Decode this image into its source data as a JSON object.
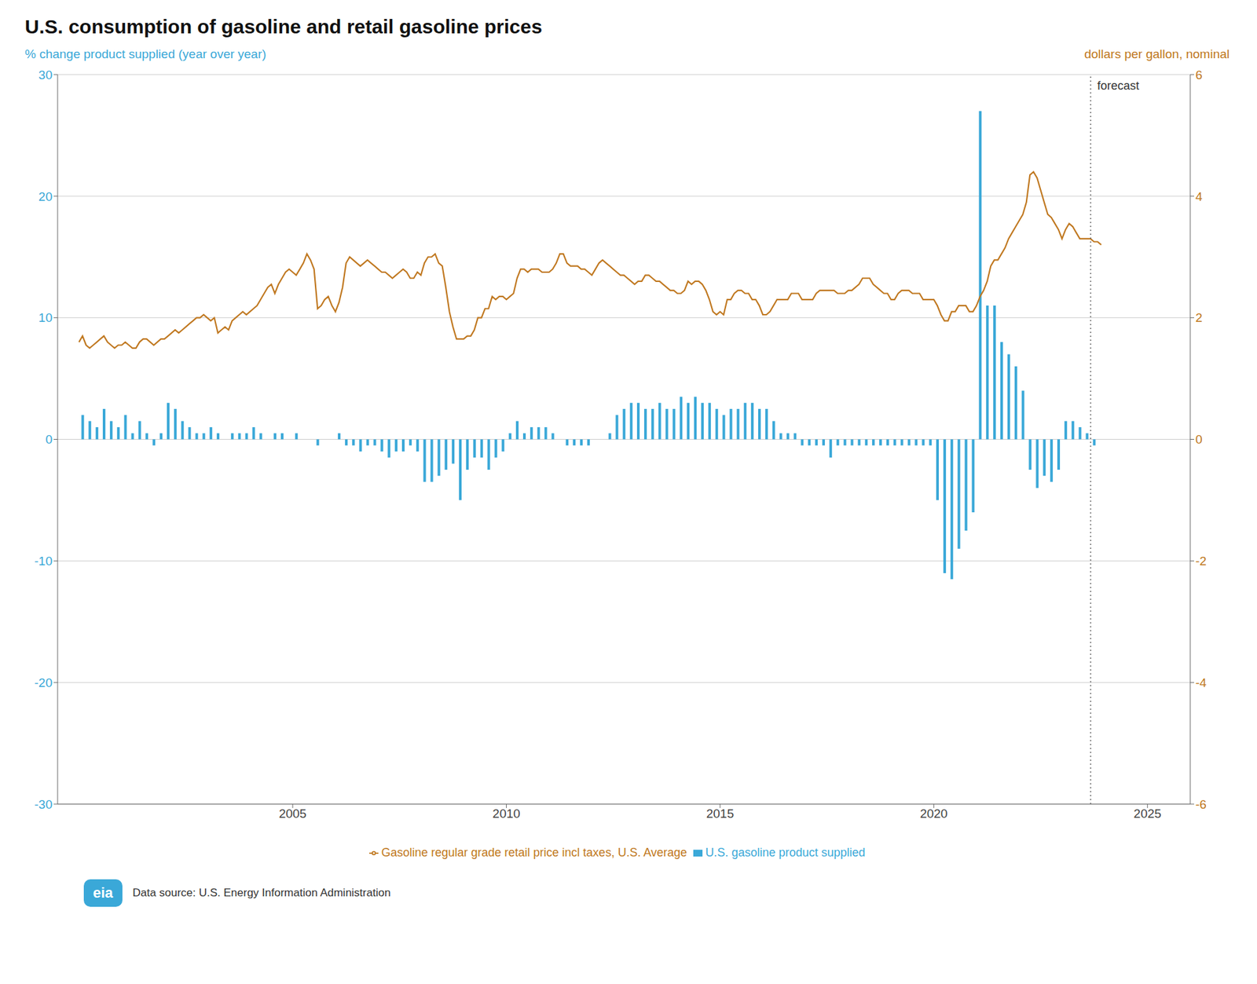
{
  "chart_data": {
    "type": "bar",
    "title": "U.S. consumption of gasoline and retail gasoline prices",
    "ylabel": "% change product supplied (year over year)",
    "y2label": "dollars per gallon, nominal",
    "xlim": [
      1999.5,
      2026.0
    ],
    "xticks": [
      2005,
      2010,
      2015,
      2020,
      2025
    ],
    "ylim": [
      -30,
      30
    ],
    "yticks": [
      -30,
      -20,
      -10,
      0,
      10,
      20,
      30
    ],
    "y2lim": [
      -6,
      6
    ],
    "y2ticks": [
      -6,
      -4,
      -2,
      0,
      2,
      4,
      6
    ],
    "grid": true,
    "legend": "bottom",
    "annotations": [
      {
        "text": "forecast",
        "x": 2023.67
      },
      {
        "text": "eia"
      },
      {
        "text": "Data source: U.S. Energy Information Administration"
      }
    ],
    "series": [
      {
        "name": "U.S. gasoline product supplied",
        "type": "bar",
        "color": "#3AA8D8",
        "x": [
          2000.083,
          2000.25,
          2000.417,
          2000.583,
          2000.75,
          2000.917,
          2001.083,
          2001.25,
          2001.417,
          2001.583,
          2001.75,
          2001.917,
          2002.083,
          2002.25,
          2002.417,
          2002.583,
          2002.75,
          2002.917,
          2003.083,
          2003.25,
          2003.417,
          2003.583,
          2003.75,
          2003.917,
          2004.083,
          2004.25,
          2004.417,
          2004.583,
          2004.75,
          2004.917,
          2005.083,
          2005.25,
          2005.417,
          2005.583,
          2005.75,
          2005.917,
          2006.083,
          2006.25,
          2006.417,
          2006.583,
          2006.75,
          2006.917,
          2007.083,
          2007.25,
          2007.417,
          2007.583,
          2007.75,
          2007.917,
          2008.083,
          2008.25,
          2008.417,
          2008.583,
          2008.75,
          2008.917,
          2009.083,
          2009.25,
          2009.417,
          2009.583,
          2009.75,
          2009.917,
          2010.083,
          2010.25,
          2010.417,
          2010.583,
          2010.75,
          2010.917,
          2011.083,
          2011.25,
          2011.417,
          2011.583,
          2011.75,
          2011.917,
          2012.083,
          2012.25,
          2012.417,
          2012.583,
          2012.75,
          2012.917,
          2013.083,
          2013.25,
          2013.417,
          2013.583,
          2013.75,
          2013.917,
          2014.083,
          2014.25,
          2014.417,
          2014.583,
          2014.75,
          2014.917,
          2015.083,
          2015.25,
          2015.417,
          2015.583,
          2015.75,
          2015.917,
          2016.083,
          2016.25,
          2016.417,
          2016.583,
          2016.75,
          2016.917,
          2017.083,
          2017.25,
          2017.417,
          2017.583,
          2017.75,
          2017.917,
          2018.083,
          2018.25,
          2018.417,
          2018.583,
          2018.75,
          2018.917,
          2019.083,
          2019.25,
          2019.417,
          2019.583,
          2019.75,
          2019.917,
          2020.083,
          2020.25,
          2020.417,
          2020.583,
          2020.75,
          2020.917,
          2021.083,
          2021.25,
          2021.417,
          2021.583,
          2021.75,
          2021.917,
          2022.083,
          2022.25,
          2022.417,
          2022.583,
          2022.75,
          2022.917,
          2023.083,
          2023.25,
          2023.417,
          2023.583,
          2023.75,
          2023.917
        ],
        "values": [
          2.0,
          1.5,
          1.0,
          2.5,
          1.5,
          1.0,
          2.0,
          0.5,
          1.5,
          0.5,
          -0.5,
          0.5,
          3.0,
          2.5,
          1.5,
          1.0,
          0.5,
          0.5,
          1.0,
          0.5,
          0.0,
          0.5,
          0.5,
          0.5,
          1.0,
          0.5,
          0.0,
          0.5,
          0.5,
          0.0,
          0.5,
          0.0,
          0.0,
          -0.5,
          0.0,
          0.0,
          0.5,
          -0.5,
          -0.5,
          -1.0,
          -0.5,
          -0.5,
          -1.0,
          -1.5,
          -1.0,
          -1.0,
          -0.5,
          -1.0,
          -3.5,
          -3.5,
          -3.0,
          -2.5,
          -2.0,
          -5.0,
          -2.5,
          -1.5,
          -1.5,
          -2.5,
          -1.5,
          -1.0,
          0.5,
          1.5,
          0.5,
          1.0,
          1.0,
          1.0,
          0.5,
          0.0,
          -0.5,
          -0.5,
          -0.5,
          -0.5,
          0.0,
          0.0,
          0.5,
          2.0,
          2.5,
          3.0,
          3.0,
          2.5,
          2.5,
          3.0,
          2.5,
          2.5,
          3.5,
          3.0,
          3.5,
          3.0,
          3.0,
          2.5,
          2.0,
          2.5,
          2.5,
          3.0,
          3.0,
          2.5,
          2.5,
          1.5,
          0.5,
          0.5,
          0.5,
          -0.5,
          -0.5,
          -0.5,
          -0.5,
          -1.5,
          -0.5,
          -0.5,
          -0.5,
          -0.5,
          -0.5,
          -0.5,
          -0.5,
          -0.5,
          -0.5,
          -0.5,
          -0.5,
          -0.5,
          -0.5,
          -0.5,
          -5.0,
          -11.0,
          -11.5,
          -9.0,
          -7.5,
          -6.0,
          27.0,
          11.0,
          11.0,
          8.0,
          7.0,
          6.0,
          4.0,
          -2.5,
          -4.0,
          -3.0,
          -3.5,
          -2.5,
          1.5,
          1.5,
          1.0,
          0.5,
          -0.5,
          0.0
        ]
      },
      {
        "name": "Gasoline regular grade retail price incl taxes, U.S. Average",
        "type": "line",
        "axis": "y2",
        "color": "#C07820",
        "x": [
          2000.0,
          2000.083,
          2000.167,
          2000.25,
          2000.333,
          2000.417,
          2000.5,
          2000.583,
          2000.667,
          2000.75,
          2000.833,
          2000.917,
          2001.0,
          2001.083,
          2001.167,
          2001.25,
          2001.333,
          2001.417,
          2001.5,
          2001.583,
          2001.667,
          2001.75,
          2001.833,
          2001.917,
          2002.0,
          2002.083,
          2002.167,
          2002.25,
          2002.333,
          2002.417,
          2002.5,
          2002.583,
          2002.667,
          2002.75,
          2002.833,
          2002.917,
          2003.0,
          2003.083,
          2003.167,
          2003.25,
          2003.333,
          2003.417,
          2003.5,
          2003.583,
          2003.667,
          2003.75,
          2003.833,
          2003.917,
          2004.0,
          2004.083,
          2004.167,
          2004.25,
          2004.333,
          2004.417,
          2004.5,
          2004.583,
          2004.667,
          2004.75,
          2004.833,
          2004.917,
          2005.0,
          2005.083,
          2005.167,
          2005.25,
          2005.333,
          2005.417,
          2005.5,
          2005.583,
          2005.667,
          2005.75,
          2005.833,
          2005.917,
          2006.0,
          2006.083,
          2006.167,
          2006.25,
          2006.333,
          2006.417,
          2006.5,
          2006.583,
          2006.667,
          2006.75,
          2006.833,
          2006.917,
          2007.0,
          2007.083,
          2007.167,
          2007.25,
          2007.333,
          2007.417,
          2007.5,
          2007.583,
          2007.667,
          2007.75,
          2007.833,
          2007.917,
          2008.0,
          2008.083,
          2008.167,
          2008.25,
          2008.333,
          2008.417,
          2008.5,
          2008.583,
          2008.667,
          2008.75,
          2008.833,
          2008.917,
          2009.0,
          2009.083,
          2009.167,
          2009.25,
          2009.333,
          2009.417,
          2009.5,
          2009.583,
          2009.667,
          2009.75,
          2009.833,
          2009.917,
          2010.0,
          2010.083,
          2010.167,
          2010.25,
          2010.333,
          2010.417,
          2010.5,
          2010.583,
          2010.667,
          2010.75,
          2010.833,
          2010.917,
          2011.0,
          2011.083,
          2011.167,
          2011.25,
          2011.333,
          2011.417,
          2011.5,
          2011.583,
          2011.667,
          2011.75,
          2011.833,
          2011.917,
          2012.0,
          2012.083,
          2012.167,
          2012.25,
          2012.333,
          2012.417,
          2012.5,
          2012.583,
          2012.667,
          2012.75,
          2012.833,
          2012.917,
          2013.0,
          2013.083,
          2013.167,
          2013.25,
          2013.333,
          2013.417,
          2013.5,
          2013.583,
          2013.667,
          2013.75,
          2013.833,
          2013.917,
          2014.0,
          2014.083,
          2014.167,
          2014.25,
          2014.333,
          2014.417,
          2014.5,
          2014.583,
          2014.667,
          2014.75,
          2014.833,
          2014.917,
          2015.0,
          2015.083,
          2015.167,
          2015.25,
          2015.333,
          2015.417,
          2015.5,
          2015.583,
          2015.667,
          2015.75,
          2015.833,
          2015.917,
          2016.0,
          2016.083,
          2016.167,
          2016.25,
          2016.333,
          2016.417,
          2016.5,
          2016.583,
          2016.667,
          2016.75,
          2016.833,
          2016.917,
          2017.0,
          2017.083,
          2017.167,
          2017.25,
          2017.333,
          2017.417,
          2017.5,
          2017.583,
          2017.667,
          2017.75,
          2017.833,
          2017.917,
          2018.0,
          2018.083,
          2018.167,
          2018.25,
          2018.333,
          2018.417,
          2018.5,
          2018.583,
          2018.667,
          2018.75,
          2018.833,
          2018.917,
          2019.0,
          2019.083,
          2019.167,
          2019.25,
          2019.333,
          2019.417,
          2019.5,
          2019.583,
          2019.667,
          2019.75,
          2019.833,
          2019.917,
          2020.0,
          2020.083,
          2020.167,
          2020.25,
          2020.333,
          2020.417,
          2020.5,
          2020.583,
          2020.667,
          2020.75,
          2020.833,
          2020.917,
          2021.0,
          2021.083,
          2021.167,
          2021.25,
          2021.333,
          2021.417,
          2021.5,
          2021.583,
          2021.667,
          2021.75,
          2021.833,
          2021.917,
          2022.0,
          2022.083,
          2022.167,
          2022.25,
          2022.333,
          2022.417,
          2022.5,
          2022.583,
          2022.667,
          2022.75,
          2022.833,
          2022.917,
          2023.0,
          2023.083,
          2023.167,
          2023.25,
          2023.333,
          2023.417,
          2023.5,
          2023.583,
          2023.667,
          2023.75,
          2023.833,
          2023.917
        ],
        "values": [
          1.6,
          1.7,
          1.55,
          1.5,
          1.55,
          1.6,
          1.65,
          1.7,
          1.6,
          1.55,
          1.5,
          1.55,
          1.55,
          1.6,
          1.55,
          1.5,
          1.5,
          1.6,
          1.65,
          1.65,
          1.6,
          1.55,
          1.6,
          1.65,
          1.65,
          1.7,
          1.75,
          1.8,
          1.75,
          1.8,
          1.85,
          1.9,
          1.95,
          2.0,
          2.0,
          2.05,
          2.0,
          1.95,
          2.0,
          1.75,
          1.8,
          1.85,
          1.8,
          1.95,
          2.0,
          2.05,
          2.1,
          2.05,
          2.1,
          2.15,
          2.2,
          2.3,
          2.4,
          2.5,
          2.55,
          2.4,
          2.55,
          2.65,
          2.75,
          2.8,
          2.75,
          2.7,
          2.8,
          2.9,
          3.05,
          2.95,
          2.8,
          2.15,
          2.2,
          2.3,
          2.35,
          2.2,
          2.1,
          2.25,
          2.5,
          2.9,
          3.0,
          2.95,
          2.9,
          2.85,
          2.9,
          2.95,
          2.9,
          2.85,
          2.8,
          2.75,
          2.75,
          2.7,
          2.65,
          2.7,
          2.75,
          2.8,
          2.75,
          2.65,
          2.65,
          2.75,
          2.7,
          2.9,
          3.0,
          3.0,
          3.05,
          2.9,
          2.85,
          2.5,
          2.1,
          1.85,
          1.65,
          1.65,
          1.65,
          1.7,
          1.7,
          1.8,
          2.0,
          2.0,
          2.15,
          2.15,
          2.35,
          2.3,
          2.35,
          2.35,
          2.3,
          2.35,
          2.4,
          2.65,
          2.8,
          2.8,
          2.75,
          2.8,
          2.8,
          2.8,
          2.75,
          2.75,
          2.75,
          2.8,
          2.9,
          3.05,
          3.05,
          2.9,
          2.85,
          2.85,
          2.85,
          2.8,
          2.8,
          2.75,
          2.7,
          2.8,
          2.9,
          2.95,
          2.9,
          2.85,
          2.8,
          2.75,
          2.7,
          2.7,
          2.65,
          2.6,
          2.55,
          2.6,
          2.6,
          2.7,
          2.7,
          2.65,
          2.6,
          2.6,
          2.55,
          2.5,
          2.45,
          2.45,
          2.4,
          2.4,
          2.45,
          2.6,
          2.55,
          2.6,
          2.6,
          2.55,
          2.45,
          2.3,
          2.1,
          2.05,
          2.1,
          2.05,
          2.3,
          2.3,
          2.4,
          2.45,
          2.45,
          2.4,
          2.4,
          2.3,
          2.3,
          2.2,
          2.05,
          2.05,
          2.1,
          2.2,
          2.3,
          2.3,
          2.3,
          2.3,
          2.4,
          2.4,
          2.4,
          2.3,
          2.3,
          2.3,
          2.3,
          2.4,
          2.45,
          2.45,
          2.45,
          2.45,
          2.45,
          2.4,
          2.4,
          2.4,
          2.45,
          2.45,
          2.5,
          2.55,
          2.65,
          2.65,
          2.65,
          2.55,
          2.5,
          2.45,
          2.4,
          2.4,
          2.3,
          2.3,
          2.4,
          2.45,
          2.45,
          2.45,
          2.4,
          2.4,
          2.4,
          2.3,
          2.3,
          2.3,
          2.3,
          2.2,
          2.05,
          1.95,
          1.95,
          2.1,
          2.1,
          2.2,
          2.2,
          2.2,
          2.1,
          2.1,
          2.2,
          2.35,
          2.45,
          2.6,
          2.85,
          2.95,
          2.95,
          3.05,
          3.15,
          3.3,
          3.4,
          3.5,
          3.6,
          3.7,
          3.9,
          4.35,
          4.4,
          4.3,
          4.1,
          3.9,
          3.7,
          3.65,
          3.55,
          3.45,
          3.3,
          3.45,
          3.55,
          3.5,
          3.4,
          3.3,
          3.3,
          3.3,
          3.3,
          3.25,
          3.25,
          3.2
        ]
      }
    ]
  }
}
